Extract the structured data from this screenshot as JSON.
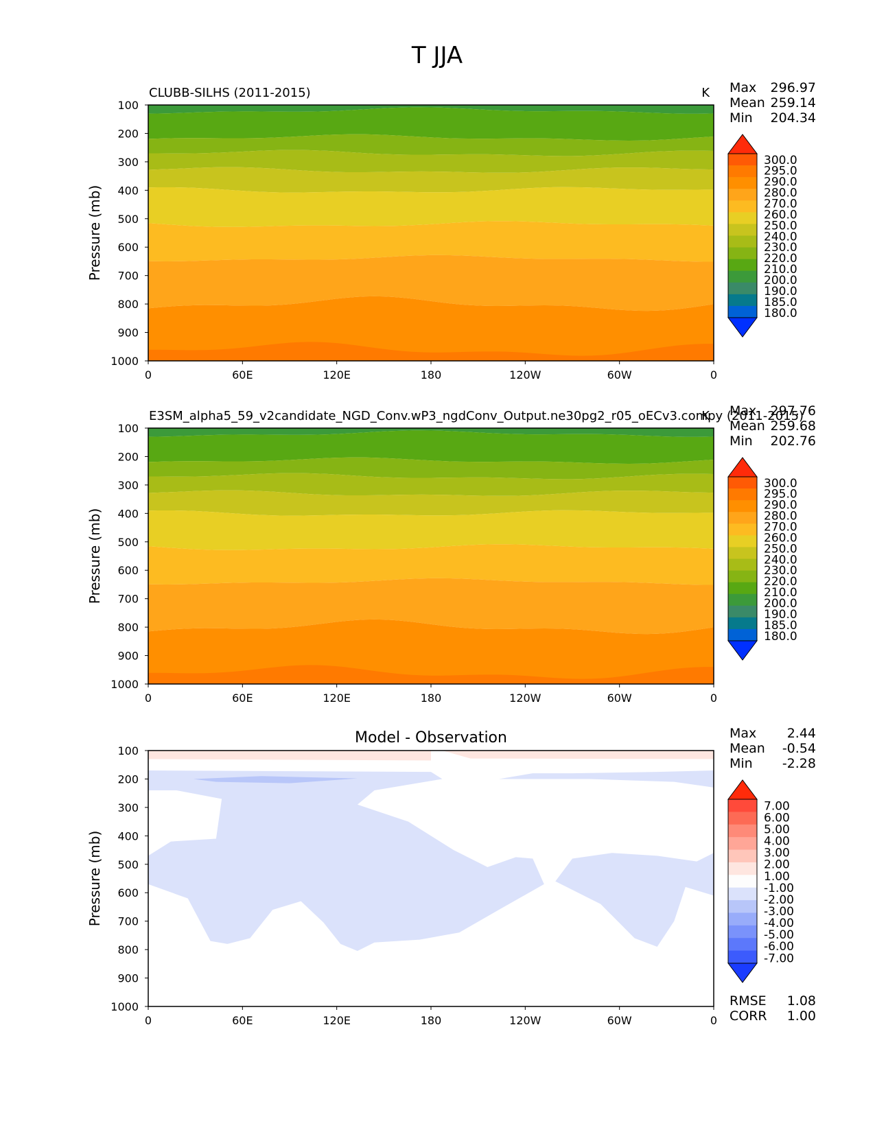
{
  "figure": {
    "title": "T JJA"
  },
  "chart_data": [
    {
      "type": "contour",
      "title": "CLUBB-SILHS (2011-2015)",
      "units": "K",
      "ylabel": "Pressure (mb)",
      "xlabel": "",
      "ylim": [
        1000,
        100
      ],
      "xlim": [
        0,
        360
      ],
      "x_ticks": [
        "0",
        "60E",
        "120E",
        "180",
        "120W",
        "60W",
        "0"
      ],
      "y_ticks": [
        "100",
        "200",
        "300",
        "400",
        "500",
        "600",
        "700",
        "800",
        "900",
        "1000"
      ],
      "stats": [
        {
          "label": "Max",
          "value": "296.97"
        },
        {
          "label": "Mean",
          "value": "259.14"
        },
        {
          "label": "Min",
          "value": "204.34"
        }
      ],
      "colorbar": {
        "labels": [
          "300.0",
          "295.0",
          "290.0",
          "280.0",
          "270.0",
          "260.0",
          "250.0",
          "240.0",
          "230.0",
          "220.0",
          "210.0",
          "200.0",
          "190.0",
          "185.0",
          "180.0"
        ],
        "colors": [
          "#ff2b0a",
          "#ff5a05",
          "#ff7a00",
          "#ff8f00",
          "#ffa51a",
          "#fdbb21",
          "#e8cf24",
          "#c8c41e",
          "#a8bc17",
          "#86b414",
          "#58a813",
          "#3c9a3a",
          "#3a8a68",
          "#067a8c",
          "#0062d6",
          "#0030ff"
        ]
      },
      "levels_profile": [
        {
          "p": 100,
          "T": 208
        },
        {
          "p": 150,
          "T": 212
        },
        {
          "p": 200,
          "T": 218
        },
        {
          "p": 250,
          "T": 226
        },
        {
          "p": 300,
          "T": 234
        },
        {
          "p": 350,
          "T": 242
        },
        {
          "p": 400,
          "T": 248
        },
        {
          "p": 500,
          "T": 258
        },
        {
          "p": 600,
          "T": 265
        },
        {
          "p": 700,
          "T": 274
        },
        {
          "p": 800,
          "T": 281
        },
        {
          "p": 900,
          "T": 286
        },
        {
          "p": 1000,
          "T": 289
        }
      ]
    },
    {
      "type": "contour",
      "title": "E3SM_alpha5_59_v2candidate_NGD_Conv.wP3_ngdConv_Output.ne30pg2_r05_oECv3.compy (2011-2015)",
      "units": "K",
      "ylabel": "Pressure (mb)",
      "xlabel": "",
      "ylim": [
        1000,
        100
      ],
      "xlim": [
        0,
        360
      ],
      "x_ticks": [
        "0",
        "60E",
        "120E",
        "180",
        "120W",
        "60W",
        "0"
      ],
      "y_ticks": [
        "100",
        "200",
        "300",
        "400",
        "500",
        "600",
        "700",
        "800",
        "900",
        "1000"
      ],
      "stats": [
        {
          "label": "Max",
          "value": "297.76"
        },
        {
          "label": "Mean",
          "value": "259.68"
        },
        {
          "label": "Min",
          "value": "202.76"
        }
      ],
      "colorbar": {
        "labels": [
          "300.0",
          "295.0",
          "290.0",
          "280.0",
          "270.0",
          "260.0",
          "250.0",
          "240.0",
          "230.0",
          "220.0",
          "210.0",
          "200.0",
          "190.0",
          "185.0",
          "180.0"
        ],
        "colors": [
          "#ff2b0a",
          "#ff5a05",
          "#ff7a00",
          "#ff8f00",
          "#ffa51a",
          "#fdbb21",
          "#e8cf24",
          "#c8c41e",
          "#a8bc17",
          "#86b414",
          "#58a813",
          "#3c9a3a",
          "#3a8a68",
          "#067a8c",
          "#0062d6",
          "#0030ff"
        ]
      }
    },
    {
      "type": "contour",
      "title": "Model - Observation",
      "units": "",
      "ylabel": "Pressure (mb)",
      "xlabel": "",
      "ylim": [
        1000,
        100
      ],
      "xlim": [
        0,
        360
      ],
      "x_ticks": [
        "0",
        "60E",
        "120E",
        "180",
        "120W",
        "60W",
        "0"
      ],
      "y_ticks": [
        "100",
        "200",
        "300",
        "400",
        "500",
        "600",
        "700",
        "800",
        "900",
        "1000"
      ],
      "stats": [
        {
          "label": "Max",
          "value": "2.44"
        },
        {
          "label": "Mean",
          "value": "-0.54"
        },
        {
          "label": "Min",
          "value": "-2.28"
        }
      ],
      "metrics": [
        {
          "label": "RMSE",
          "value": "1.08"
        },
        {
          "label": "CORR",
          "value": "1.00"
        }
      ],
      "colorbar": {
        "labels": [
          "7.00",
          "6.00",
          "5.00",
          "4.00",
          "3.00",
          "2.00",
          "1.00",
          "-1.00",
          "-2.00",
          "-3.00",
          "-4.00",
          "-5.00",
          "-6.00",
          "-7.00"
        ],
        "colors": [
          "#ff2b0a",
          "#ff4a3a",
          "#fd6a55",
          "#fe8a78",
          "#ffa697",
          "#ffc6ba",
          "#fee6e0",
          "#fdfdfd",
          "#dbe2fb",
          "#b8c6f9",
          "#98acfa",
          "#7a92fb",
          "#5c78fb",
          "#3c5bfd",
          "#1a3cff"
        ]
      }
    }
  ]
}
